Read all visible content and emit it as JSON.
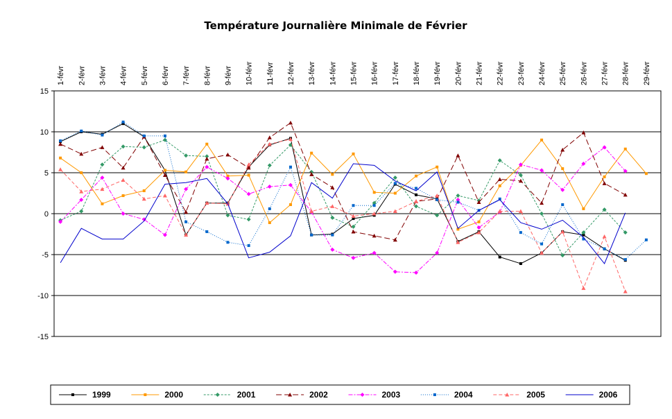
{
  "chart_data": {
    "type": "line",
    "title": "Température Journalière Minimale de Février",
    "xlabel": "",
    "ylabel": "",
    "ylim": [
      -15,
      15
    ],
    "yticks": [
      -15,
      -10,
      -5,
      0,
      5,
      10,
      15
    ],
    "grid": true,
    "legend": "bottom",
    "x_axis_position": "top",
    "categories": [
      "1-févr",
      "2-févr",
      "3-févr",
      "4-févr",
      "5-févr",
      "6-févr",
      "7-févr",
      "8-févr",
      "9-févr",
      "10-févr",
      "11-févr",
      "12-févr",
      "13-févr",
      "14-févr",
      "15-févr",
      "16-févr",
      "17-févr",
      "18-févr",
      "19-févr",
      "20-févr",
      "21-févr",
      "22-févr",
      "23-févr",
      "24-févr",
      "25-févr",
      "26-févr",
      "27-févr",
      "28-févr",
      "29-févr"
    ],
    "series": [
      {
        "name": "1999",
        "color": "#000000",
        "dash": "",
        "marker": "square",
        "values": [
          8.8,
          10.0,
          9.7,
          11.0,
          9.4,
          5.3,
          -2.6,
          1.3,
          1.3,
          5.7,
          8.4,
          9.2,
          -2.6,
          -2.5,
          -0.6,
          -0.2,
          3.6,
          2.3,
          1.8,
          -3.4,
          -2.2,
          -5.3,
          -6.1,
          -4.8,
          -2.2,
          -2.6,
          -4.3,
          -5.7,
          null
        ]
      },
      {
        "name": "2000",
        "color": "#FF9900",
        "dash": "",
        "marker": "square",
        "values": [
          6.8,
          5.0,
          1.2,
          2.2,
          2.8,
          5.3,
          5.1,
          8.5,
          4.6,
          4.7,
          -1.1,
          1.1,
          7.4,
          4.8,
          7.3,
          2.6,
          2.5,
          4.6,
          5.7,
          -1.9,
          -1.0,
          3.4,
          5.9,
          9.0,
          5.5,
          0.6,
          4.5,
          7.9,
          4.9
        ]
      },
      {
        "name": "2001",
        "color": "#339966",
        "dash": "3,2",
        "marker": "diamond",
        "values": [
          -0.8,
          0.3,
          6.0,
          8.2,
          8.1,
          9.0,
          7.1,
          7.0,
          -0.2,
          -0.7,
          5.9,
          8.4,
          5.1,
          -0.5,
          -1.6,
          1.3,
          4.4,
          0.9,
          -0.2,
          2.2,
          1.6,
          6.5,
          4.7,
          0.0,
          -5.1,
          -2.3,
          0.5,
          -2.3,
          null
        ]
      },
      {
        "name": "2002",
        "color": "#800000",
        "dash": "8,4",
        "marker": "triangle",
        "values": [
          8.5,
          7.3,
          8.1,
          5.6,
          9.4,
          4.7,
          0.2,
          6.7,
          7.2,
          5.6,
          9.3,
          11.1,
          4.8,
          3.2,
          -2.2,
          -2.7,
          -3.2,
          1.5,
          1.8,
          7.1,
          1.4,
          4.2,
          4.0,
          1.3,
          7.8,
          9.9,
          3.7,
          2.3,
          null
        ]
      },
      {
        "name": "2003",
        "color": "#FF00FF",
        "dash": "6,2,2,2",
        "marker": "diamond",
        "values": [
          -1.0,
          1.7,
          4.4,
          0.0,
          -0.7,
          -2.6,
          3.0,
          5.7,
          4.3,
          2.4,
          3.3,
          3.5,
          0.2,
          -4.4,
          -5.4,
          -4.8,
          -7.1,
          -7.2,
          -4.8,
          1.7,
          -1.7,
          0.2,
          6.0,
          5.3,
          2.9,
          6.1,
          8.1,
          5.2,
          null
        ]
      },
      {
        "name": "2004",
        "color": "#0066CC",
        "dash": "1,2",
        "marker": "square",
        "values": [
          8.9,
          10.1,
          9.6,
          11.2,
          9.5,
          9.5,
          -1.0,
          -2.2,
          -3.5,
          -3.9,
          0.6,
          5.7,
          -2.6,
          -2.6,
          1.0,
          1.0,
          3.7,
          3.1,
          1.7,
          1.4,
          0.4,
          1.8,
          -2.3,
          -3.7,
          1.1,
          -3.1,
          -4.3,
          -5.6,
          -3.2
        ]
      },
      {
        "name": "2005",
        "color": "#FF6666",
        "dash": "5,3",
        "marker": "triangle",
        "values": [
          5.4,
          2.7,
          3.0,
          4.1,
          1.8,
          2.2,
          -2.6,
          1.3,
          1.2,
          6.0,
          8.5,
          9.1,
          0.3,
          0.9,
          -0.3,
          0.0,
          0.3,
          1.5,
          2.2,
          -3.5,
          -2.3,
          0.3,
          0.3,
          -4.8,
          -2.2,
          -9.1,
          -2.8,
          -9.5,
          null
        ]
      },
      {
        "name": "2006",
        "color": "#0000CC",
        "dash": "",
        "marker": "none",
        "values": [
          -6.0,
          -1.8,
          -3.1,
          -3.1,
          -0.9,
          3.6,
          3.8,
          4.3,
          1.2,
          -5.4,
          -4.7,
          -2.7,
          3.8,
          1.9,
          6.1,
          5.9,
          4.0,
          2.8,
          5.1,
          -1.8,
          0.4,
          1.7,
          -1.1,
          -1.9,
          -0.8,
          -2.9,
          -6.1,
          0.1,
          null
        ]
      }
    ]
  }
}
